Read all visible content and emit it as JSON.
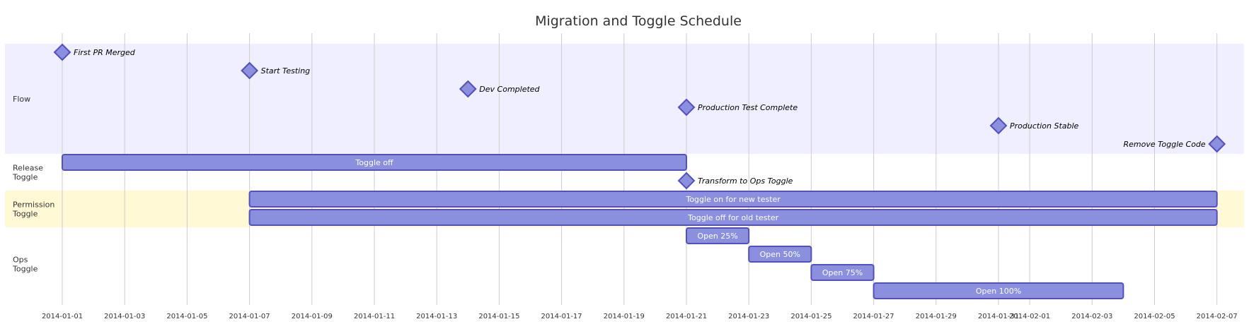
{
  "chart_data": {
    "type": "gantt",
    "title": "Migration and Toggle Schedule",
    "axis_ticks": [
      "2014-01-01",
      "2014-01-03",
      "2014-01-05",
      "2014-01-07",
      "2014-01-09",
      "2014-01-11",
      "2014-01-13",
      "2014-01-15",
      "2014-01-17",
      "2014-01-19",
      "2014-01-21",
      "2014-01-23",
      "2014-01-25",
      "2014-01-27",
      "2014-01-29",
      "2014-01-31",
      "2014-02-01",
      "2014-02-03",
      "2014-02-05",
      "2014-02-07"
    ],
    "sections": [
      {
        "name": "Flow",
        "color": "#efefff",
        "tasks": [
          {
            "name": "First PR Merged",
            "type": "milestone",
            "date": "2014-01-01"
          },
          {
            "name": "Start Testing",
            "type": "milestone",
            "date": "2014-01-07"
          },
          {
            "name": "Dev Completed",
            "type": "milestone",
            "date": "2014-01-14"
          },
          {
            "name": "Production Test Complete",
            "type": "milestone",
            "date": "2014-01-21"
          },
          {
            "name": "Production Stable",
            "type": "milestone",
            "date": "2014-01-31"
          },
          {
            "name": "Remove Toggle Code",
            "type": "milestone",
            "date": "2014-02-07"
          }
        ]
      },
      {
        "name": "Release Toggle",
        "color": "#ffffff",
        "tasks": [
          {
            "name": "Toggle off",
            "type": "task",
            "start": "2014-01-01",
            "end": "2014-01-21"
          },
          {
            "name": "Transform to Ops Toggle",
            "type": "milestone",
            "date": "2014-01-21"
          }
        ]
      },
      {
        "name": "Permission Toggle",
        "color": "#fff9d6",
        "tasks": [
          {
            "name": "Toggle on for new tester",
            "type": "task",
            "start": "2014-01-07",
            "end": "2014-02-07"
          },
          {
            "name": "Toggle off for old tester",
            "type": "task",
            "start": "2014-01-07",
            "end": "2014-02-07"
          }
        ]
      },
      {
        "name": "Ops Toggle",
        "color": "#ffffff",
        "tasks": [
          {
            "name": "Open 25%",
            "type": "task",
            "start": "2014-01-21",
            "end": "2014-01-23"
          },
          {
            "name": "Open 50%",
            "type": "task",
            "start": "2014-01-23",
            "end": "2014-01-25"
          },
          {
            "name": "Open 75%",
            "type": "task",
            "start": "2014-01-25",
            "end": "2014-01-27"
          },
          {
            "name": "Open 100%",
            "type": "task",
            "start": "2014-01-27",
            "end": "2014-02-04"
          }
        ]
      }
    ]
  }
}
